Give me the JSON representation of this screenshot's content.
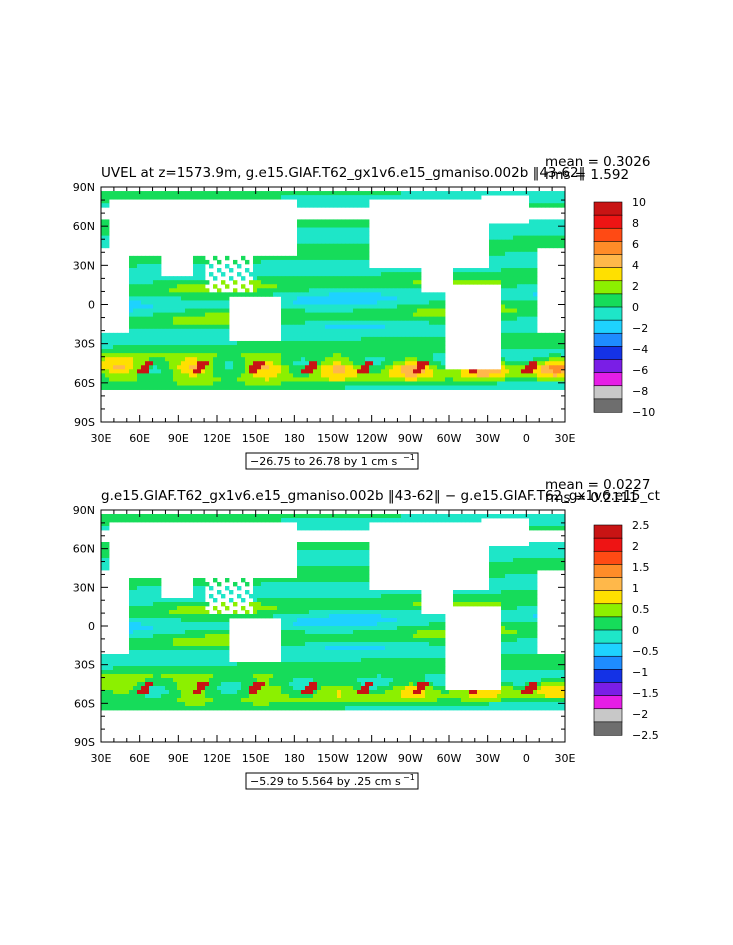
{
  "chart_data": [
    {
      "type": "heatmap",
      "title": "UVEL at z=1573.9m, g.e15.GIAF.T62_gx1v6.e15_gmaniso.002b ‖43-62‖",
      "stats": {
        "mean": "mean = 0.3026",
        "rms": "rms = 1.592"
      },
      "range_caption": "−26.75 to 26.78 by 1 cm s",
      "range_unit_exp": "−1",
      "xticks": [
        "30E",
        "60E",
        "90E",
        "120E",
        "150E",
        "180",
        "150W",
        "120W",
        "90W",
        "60W",
        "30W",
        "0",
        "30E"
      ],
      "yticks": [
        "90N",
        "60N",
        "30N",
        "0",
        "30S",
        "60S",
        "90S"
      ],
      "colorbar": {
        "labels": [
          "10",
          "8",
          "6",
          "4",
          "2",
          "0",
          "−2",
          "−4",
          "−6",
          "−8",
          "−10"
        ],
        "levels": [
          10,
          8,
          6,
          4,
          2,
          0,
          -2,
          -4,
          -6,
          -8,
          -10
        ],
        "colors": [
          "#c81414",
          "#ee1414",
          "#ff4a14",
          "#ff8c28",
          "#ffb84a",
          "#ffe000",
          "#8cf000",
          "#16dc5a",
          "#1ee6c8",
          "#1ed2ff",
          "#1e8cff",
          "#1432e6",
          "#7a1ee6",
          "#e61ee6",
          "#c8c8c8",
          "#6e6e6e"
        ]
      }
    },
    {
      "type": "heatmap",
      "title": "g.e15.GIAF.T62_gx1v6.e15_gmaniso.002b ‖43-62‖ − g.e15.GIAF.T62_gx1v6.e15_ct",
      "stats": {
        "mean": "mean = 0.0227",
        "rms": "rms = 0.2111"
      },
      "range_caption": "−5.29 to 5.564 by .25 cm s",
      "range_unit_exp": "−1",
      "xticks": [
        "30E",
        "60E",
        "90E",
        "120E",
        "150E",
        "180",
        "150W",
        "120W",
        "90W",
        "60W",
        "30W",
        "0",
        "30E"
      ],
      "yticks": [
        "90N",
        "60N",
        "30N",
        "0",
        "30S",
        "60S",
        "90S"
      ],
      "colorbar": {
        "labels": [
          "2.5",
          "2",
          "1.5",
          "1",
          "0.5",
          "0",
          "−0.5",
          "−1",
          "−1.5",
          "−2",
          "−2.5"
        ],
        "levels": [
          2.5,
          2,
          1.5,
          1,
          0.5,
          0,
          -0.5,
          -1,
          -1.5,
          -2,
          -2.5
        ],
        "colors": [
          "#c81414",
          "#ee1414",
          "#ff4a14",
          "#ff8c28",
          "#ffb84a",
          "#ffe000",
          "#8cf000",
          "#16dc5a",
          "#1ee6c8",
          "#1ed2ff",
          "#1e8cff",
          "#1432e6",
          "#7a1ee6",
          "#e61ee6",
          "#c8c8c8",
          "#6e6e6e"
        ]
      }
    }
  ]
}
